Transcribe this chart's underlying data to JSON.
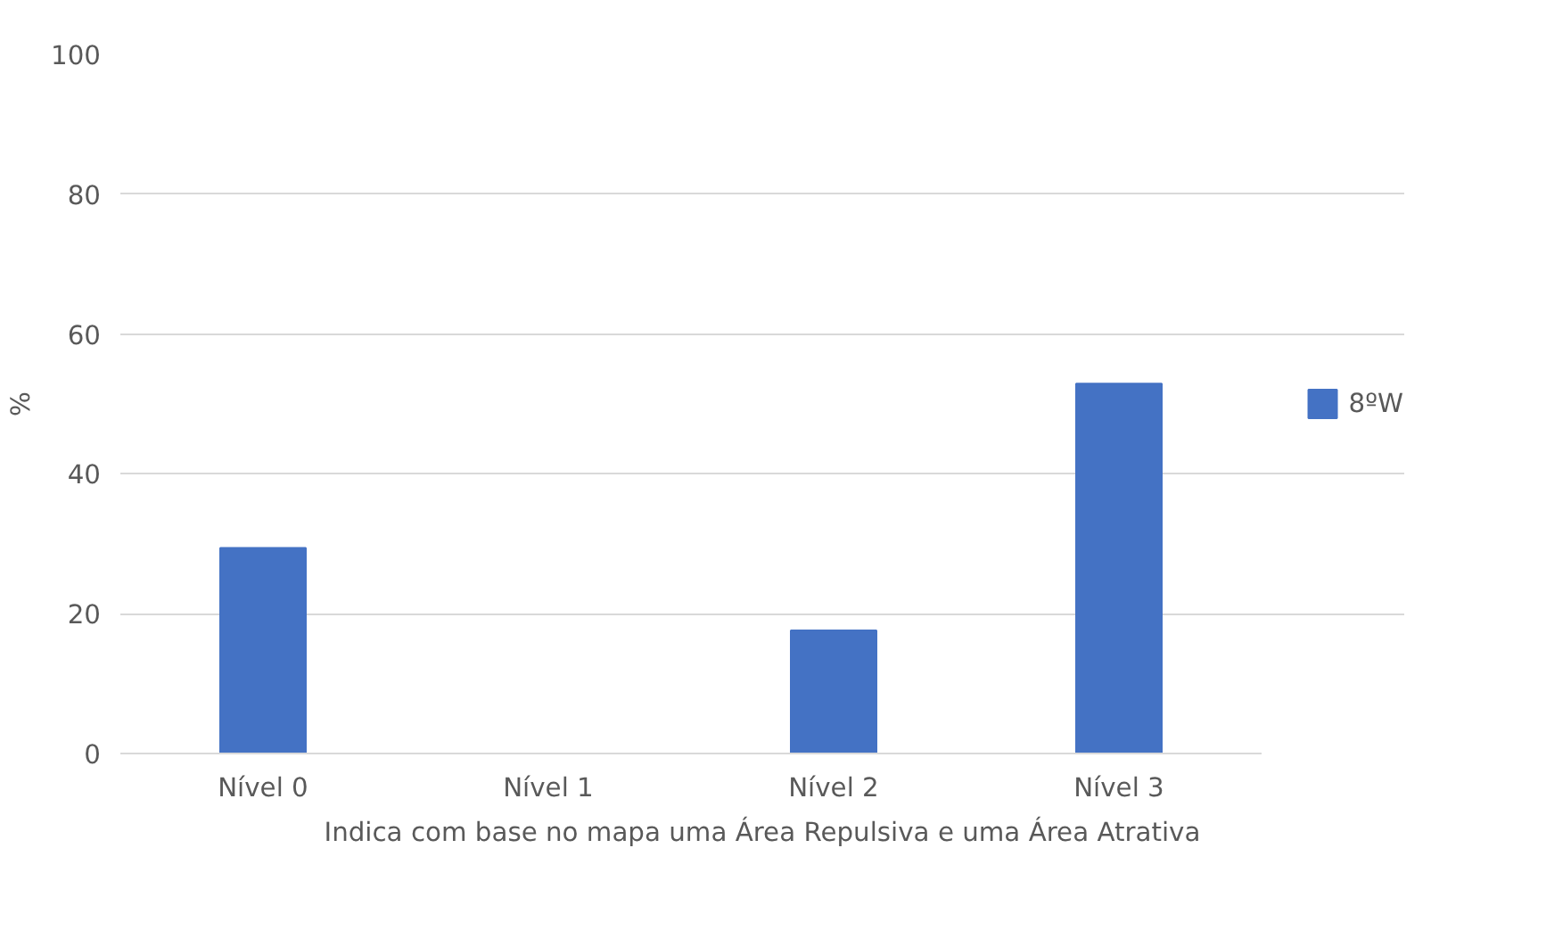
{
  "chart_data": {
    "type": "bar",
    "categories": [
      "Nível 0",
      "Nível 1",
      "Nível 2",
      "Nível 3"
    ],
    "series": [
      {
        "name": "8ºW",
        "color": "#4472c4",
        "values": [
          29.4,
          0,
          17.6,
          52.9
        ]
      }
    ],
    "xlabel": "Indica com base no mapa uma Área Repulsiva e uma Área Atrativa",
    "ylabel": "%",
    "ylim": [
      0,
      100
    ],
    "yticks": [
      0,
      20,
      40,
      60,
      80,
      100
    ],
    "grid": "y",
    "legend": "right"
  }
}
